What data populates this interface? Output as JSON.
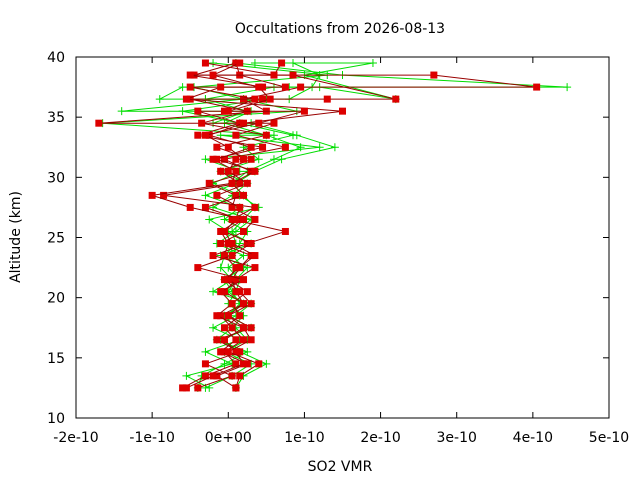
{
  "chart_data": {
    "type": "line",
    "title": "Occultations from 2026-08-13",
    "xlabel": "SO2 VMR",
    "ylabel": "Altitude (km)",
    "xlim": [
      -2e-10,
      5e-10
    ],
    "ylim": [
      10,
      40
    ],
    "x_ticks": [
      {
        "value": -2e-10,
        "label": "-2e-10"
      },
      {
        "value": -1e-10,
        "label": "-1e-10"
      },
      {
        "value": 0,
        "label": "0e+00"
      },
      {
        "value": 1e-10,
        "label": "1e-10"
      },
      {
        "value": 2e-10,
        "label": "2e-10"
      },
      {
        "value": 3e-10,
        "label": "3e-10"
      },
      {
        "value": 4e-10,
        "label": "4e-10"
      },
      {
        "value": 5e-10,
        "label": "5e-10"
      }
    ],
    "y_ticks": [
      {
        "value": 10,
        "label": "10"
      },
      {
        "value": 15,
        "label": "15"
      },
      {
        "value": 20,
        "label": "20"
      },
      {
        "value": 25,
        "label": "25"
      },
      {
        "value": 30,
        "label": "30"
      },
      {
        "value": 35,
        "label": "35"
      },
      {
        "value": 40,
        "label": "40"
      }
    ],
    "grid": false,
    "legend": "none",
    "colors": {
      "green": "#00dd00",
      "red": "#dd0000",
      "red_line": "#990000"
    },
    "series": [
      {
        "marker": "plus",
        "color": "#00dd00",
        "x": [
          -2.5e-11,
          -5.5e-11,
          5e-12,
          -3e-11,
          1.5e-11,
          -2e-11,
          1e-11,
          3e-11,
          -2e-11,
          5e-12,
          -1e-11,
          -5e-12,
          1e-11,
          5e-12,
          2e-11,
          3.5e-11,
          2e-11,
          5e-12,
          2.5e-11,
          6e-11,
          9.5e-11,
          5e-11,
          -5e-12,
          3e-11,
          -1.4e-10,
          2e-11,
          -9e-11,
          -6e-11,
          8e-11,
          4.45e-10,
          1.5e-10,
          1e-11
        ],
        "y": [
          12.5,
          13.5,
          14.5,
          15.5,
          16.5,
          17.5,
          18.5,
          19.5,
          20.5,
          21.5,
          22.5,
          23.5,
          24.5,
          25.5,
          26.5,
          27.5,
          28.5,
          29.5,
          30.5,
          31.5,
          32.5,
          33.5,
          34.5,
          35.5,
          35.5,
          36.5,
          36.5,
          37.5,
          37.5,
          37.5,
          38.5,
          39.5
        ]
      },
      {
        "marker": "plus",
        "color": "#00dd00",
        "x": [
          -4e-11,
          -3.5e-11,
          -5e-12,
          2.5e-11,
          -1.5e-11,
          5e-12,
          2e-11,
          0.0,
          1e-11,
          1.5e-11,
          0.0,
          2e-11,
          -1.5e-11,
          1e-11,
          3e-11,
          -2e-11,
          5e-12,
          2.5e-11,
          -1e-11,
          4e-11,
          2e-11,
          8.5e-11,
          1.5e-11,
          -6e-11,
          5e-11,
          -3e-11,
          6e-11,
          1.2e-10,
          2.2e-10,
          1e-10,
          1.9e-10,
          3.5e-11
        ],
        "y": [
          12.5,
          13.5,
          14.5,
          15.5,
          16.5,
          17.5,
          18.5,
          19.5,
          20.5,
          21.5,
          22.5,
          23.5,
          24.5,
          25.5,
          26.5,
          27.5,
          28.5,
          29.5,
          30.5,
          31.5,
          32.5,
          33.5,
          34.5,
          35.5,
          36.5,
          36.5,
          37.5,
          37.5,
          36.5,
          38.5,
          39.5,
          39.5
        ]
      },
      {
        "marker": "plus",
        "color": "#00dd00",
        "x": [
          1e-11,
          2e-11,
          5e-11,
          1.5e-11,
          -1e-11,
          3e-11,
          0.0,
          1.5e-11,
          5e-12,
          -5e-12,
          2e-11,
          5e-12,
          1.5e-11,
          2.5e-11,
          -5e-12,
          1.5e-11,
          -3e-11,
          1e-11,
          3.5e-11,
          7e-11,
          1.4e-10,
          9e-11,
          3e-11,
          -2e-11,
          2.5e-11,
          -3e-11,
          8e-11,
          1.1e-10,
          1.2e-10,
          8.5e-11
        ],
        "y": [
          12.5,
          13.5,
          14.5,
          15.5,
          16.5,
          17.5,
          18.5,
          19.5,
          20.5,
          21.5,
          22.5,
          23.5,
          24.5,
          25.5,
          26.5,
          27.5,
          28.5,
          29.5,
          30.5,
          31.5,
          32.5,
          33.5,
          34.5,
          34.5,
          35.5,
          36.5,
          36.5,
          37.5,
          38.5,
          39.5
        ]
      },
      {
        "marker": "plus",
        "color": "#00dd00",
        "x": [
          -3e-11,
          5e-12,
          3e-11,
          -5e-12,
          2.5e-11,
          1e-11,
          -5e-12,
          2e-11,
          0.0,
          1e-11,
          2.5e-11,
          -1e-11,
          3e-11,
          0.0,
          -2.5e-11,
          4e-11,
          1.5e-11,
          -2e-11,
          1.5e-11,
          -3e-11,
          1.2e-10,
          -1e-11,
          6e-11,
          -1.65e-10,
          9e-11,
          2e-11,
          -4.5e-11,
          1.3e-10,
          -2e-11
        ],
        "y": [
          12.5,
          13.5,
          14.5,
          15.5,
          16.5,
          17.5,
          18.5,
          19.5,
          20.5,
          21.5,
          22.5,
          23.5,
          24.5,
          25.5,
          26.5,
          27.5,
          28.5,
          29.5,
          30.5,
          31.5,
          32.5,
          33.5,
          33.5,
          34.5,
          35.5,
          36.5,
          37.5,
          38.5,
          39.5
        ]
      },
      {
        "marker": "square",
        "color": "#dd0000",
        "x": [
          -6e-11,
          -3e-11,
          1e-11,
          -5e-12,
          2e-11,
          5e-12,
          -1e-11,
          2e-11,
          1e-11,
          5e-12,
          1.5e-11,
          3e-11,
          -1e-11,
          2e-11,
          3.5e-11,
          5e-12,
          1e-11,
          -2.5e-11,
          3e-11,
          -5e-12,
          7.5e-11,
          1e-11,
          6e-11,
          -1.7e-10,
          5e-11,
          2e-11,
          9.5e-11,
          4.05e-10,
          2.7e-10,
          6e-11,
          -3e-11
        ],
        "y": [
          12.5,
          13.5,
          14.5,
          15.5,
          16.5,
          17.5,
          18.5,
          19.5,
          20.5,
          21.5,
          22.5,
          23.5,
          24.5,
          25.5,
          26.5,
          27.5,
          28.5,
          29.5,
          30.5,
          31.5,
          32.5,
          33.5,
          34.5,
          34.5,
          35.5,
          36.5,
          37.5,
          37.5,
          38.5,
          38.5,
          39.5
        ]
      },
      {
        "marker": "square",
        "color": "#dd0000",
        "x": [
          -4e-11,
          5e-12,
          -3e-11,
          1.5e-11,
          -1.5e-11,
          3e-11,
          0.0,
          2e-11,
          -5e-12,
          1e-11,
          3.5e-11,
          -2e-11,
          2.5e-11,
          7.5e-11,
          5e-12,
          3.5e-11,
          -8.5e-11,
          1.5e-11,
          -1e-11,
          3e-11,
          -1.5e-11,
          5e-11,
          -3.5e-11,
          2.5e-11,
          -5e-11,
          4.5e-11,
          1.3e-10,
          2.2e-10,
          8.5e-11,
          -4.5e-11,
          1e-11
        ],
        "y": [
          12.5,
          13.5,
          14.5,
          15.5,
          16.5,
          17.5,
          18.5,
          19.5,
          20.5,
          21.5,
          22.5,
          23.5,
          24.5,
          25.5,
          26.5,
          27.5,
          28.5,
          29.5,
          30.5,
          31.5,
          32.5,
          33.5,
          34.5,
          35.5,
          36.5,
          36.5,
          36.5,
          36.5,
          38.5,
          38.5,
          39.5
        ]
      },
      {
        "marker": "square",
        "color": "#dd0000",
        "x": [
          1e-11,
          -1.5e-11,
          2.5e-11,
          -1e-11,
          1e-11,
          -5e-12,
          1.5e-11,
          5e-12,
          2.5e-11,
          0.0,
          1e-11,
          -5e-12,
          0.0,
          -1e-11,
          1.5e-11,
          -3e-11,
          2e-11,
          5e-12,
          1e-11,
          -2e-11,
          4.5e-11,
          -4e-11,
          1.5e-11,
          -4e-11,
          -5e-12,
          3.5e-11,
          -5e-11,
          7.5e-11,
          1.5e-11,
          1e-11
        ],
        "y": [
          12.5,
          13.5,
          14.5,
          15.5,
          16.5,
          17.5,
          18.5,
          19.5,
          20.5,
          21.5,
          22.5,
          23.5,
          24.5,
          25.5,
          26.5,
          27.5,
          28.5,
          29.5,
          30.5,
          31.5,
          32.5,
          33.5,
          34.5,
          35.5,
          35.5,
          36.5,
          37.5,
          37.5,
          38.5,
          39.5
        ]
      },
      {
        "marker": "square",
        "color": "#dd0000",
        "x": [
          -5.5e-11,
          -2e-11,
          2e-11,
          1e-11,
          -5e-12,
          2e-11,
          -1.5e-11,
          5e-12,
          -1e-11,
          2e-11,
          -4e-11,
          5e-12,
          3e-11,
          -5e-12,
          2e-11,
          -5e-11,
          -1e-10,
          5e-12,
          3.5e-11,
          -1.5e-11,
          3e-11,
          -2.5e-11,
          2e-11,
          1.5e-10,
          -5.5e-11,
          -1e-11,
          4.5e-11,
          -5e-11,
          6e-11,
          7e-11
        ],
        "y": [
          12.5,
          13.5,
          14.5,
          15.5,
          16.5,
          17.5,
          18.5,
          19.5,
          20.5,
          21.5,
          22.5,
          23.5,
          24.5,
          25.5,
          26.5,
          27.5,
          28.5,
          29.5,
          30.5,
          31.5,
          32.5,
          33.5,
          34.5,
          35.5,
          36.5,
          37.5,
          37.5,
          38.5,
          38.5,
          39.5
        ]
      },
      {
        "marker": "square",
        "color": "#dd0000",
        "x": [
          1e-11,
          1.5e-11,
          4e-11,
          0.0,
          3e-11,
          2e-11,
          0.0,
          3e-11,
          1.5e-11,
          -5e-12,
          1.5e-11,
          3.5e-11,
          5e-12,
          -5e-12,
          1e-11,
          1.5e-11,
          -1.5e-11,
          2.5e-11,
          0.0,
          1e-11,
          2e-11,
          0.0,
          -3e-11,
          4e-11,
          1e-10,
          0.0,
          5.5e-11,
          4e-11,
          -2e-11,
          1.5e-11
        ],
        "y": [
          12.5,
          13.5,
          14.5,
          15.5,
          16.5,
          17.5,
          18.5,
          19.5,
          20.5,
          21.5,
          22.5,
          23.5,
          24.5,
          25.5,
          26.5,
          27.5,
          28.5,
          29.5,
          30.5,
          31.5,
          31.5,
          32.5,
          33.5,
          34.5,
          35.5,
          35.5,
          36.5,
          37.5,
          38.5,
          39.5
        ]
      }
    ]
  }
}
